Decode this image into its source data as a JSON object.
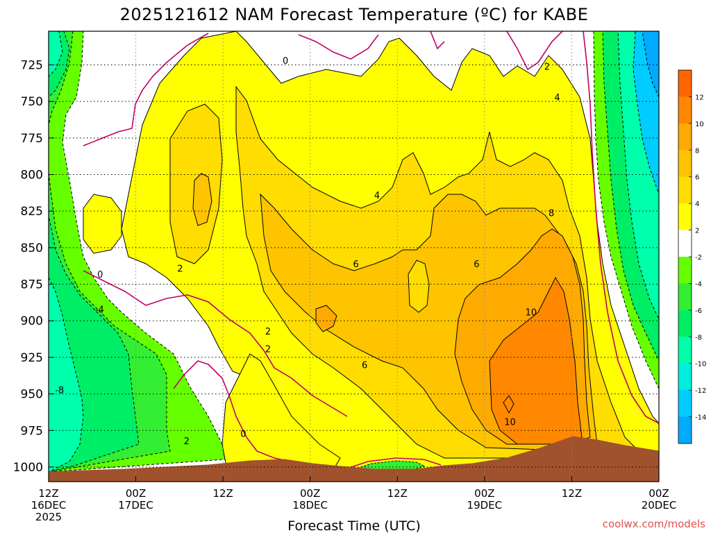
{
  "chart_data": {
    "type": "heatmap",
    "title": "2025121612 NAM Forecast Temperature (ºC) for KABE",
    "xlabel": "Forecast Time (UTC)",
    "ylabel": "",
    "y_ticks": [
      "725",
      "750",
      "775",
      "800",
      "825",
      "850",
      "875",
      "900",
      "925",
      "950",
      "975",
      "1000"
    ],
    "ylim": [
      1010,
      702
    ],
    "y_inverted": true,
    "x_ticks": [
      {
        "hour": 0,
        "line1": "12Z",
        "line2": "16DEC",
        "line3": "2025"
      },
      {
        "hour": 12,
        "line1": "00Z",
        "line2": "17DEC",
        "line3": ""
      },
      {
        "hour": 24,
        "line1": "12Z",
        "line2": "",
        "line3": ""
      },
      {
        "hour": 36,
        "line1": "00Z",
        "line2": "18DEC",
        "line3": ""
      },
      {
        "hour": 48,
        "line1": "12Z",
        "line2": "",
        "line3": ""
      },
      {
        "hour": 60,
        "line1": "00Z",
        "line2": "19DEC",
        "line3": ""
      },
      {
        "hour": 72,
        "line1": "12Z",
        "line2": "",
        "line3": ""
      },
      {
        "hour": 84,
        "line1": "00Z",
        "line2": "20DEC",
        "line3": ""
      }
    ],
    "xlim": [
      0,
      84
    ],
    "grid": true,
    "colorbar": {
      "placement": "right",
      "bins": [
        {
          "lo": -16,
          "hi": -14,
          "color": "#00aaff"
        },
        {
          "lo": -14,
          "hi": -12,
          "color": "#00ccff"
        },
        {
          "lo": -12,
          "hi": -10,
          "color": "#00eedd"
        },
        {
          "lo": -10,
          "hi": -8,
          "color": "#00ffaa"
        },
        {
          "lo": -8,
          "hi": -6,
          "color": "#00ee66"
        },
        {
          "lo": -6,
          "hi": -4,
          "color": "#33ee33"
        },
        {
          "lo": -4,
          "hi": -2,
          "color": "#66ff00"
        },
        {
          "lo": -2,
          "hi": 2,
          "color": "#ffffff"
        },
        {
          "lo": 2,
          "hi": 4,
          "color": "#ffff00"
        },
        {
          "lo": 4,
          "hi": 6,
          "color": "#ffdd00"
        },
        {
          "lo": 6,
          "hi": 8,
          "color": "#ffc400"
        },
        {
          "lo": 8,
          "hi": 10,
          "color": "#ffaa00"
        },
        {
          "lo": 10,
          "hi": 12,
          "color": "#ff8800"
        },
        {
          "lo": 12,
          "hi": 14,
          "color": "#ff6600"
        }
      ],
      "labels": [
        "-14",
        "-12",
        "-10",
        "-8",
        "-6",
        "-4",
        "-2",
        "2",
        "4",
        "6",
        "8",
        "10",
        "12"
      ]
    },
    "contour_labels": [
      {
        "text": "0",
        "hour": 32.6,
        "p": 722
      },
      {
        "text": "2",
        "hour": 68.6,
        "p": 726
      },
      {
        "text": "4",
        "hour": 70.0,
        "p": 747
      },
      {
        "text": "4",
        "hour": 45.2,
        "p": 814
      },
      {
        "text": "8",
        "hour": 69.2,
        "p": 826
      },
      {
        "text": "0",
        "hour": 7.1,
        "p": 868
      },
      {
        "text": "2",
        "hour": 18.1,
        "p": 864
      },
      {
        "text": "6",
        "hour": 42.3,
        "p": 861
      },
      {
        "text": "6",
        "hour": 58.9,
        "p": 861
      },
      {
        "text": "-4",
        "hour": 7.0,
        "p": 892
      },
      {
        "text": "10",
        "hour": 66.4,
        "p": 894
      },
      {
        "text": "2",
        "hour": 30.2,
        "p": 907
      },
      {
        "text": "2",
        "hour": 30.2,
        "p": 919
      },
      {
        "text": "6",
        "hour": 43.5,
        "p": 930
      },
      {
        "text": "-8",
        "hour": 1.5,
        "p": 947
      },
      {
        "text": "10",
        "hour": 63.5,
        "p": 969
      },
      {
        "text": "0",
        "hour": 26.8,
        "p": 977
      },
      {
        "text": "2",
        "hour": 19.0,
        "p": 982
      }
    ],
    "freezing_line_color": "#c0006a",
    "terrain_color": "#a0522d"
  },
  "credit": "coolwx.com/models"
}
